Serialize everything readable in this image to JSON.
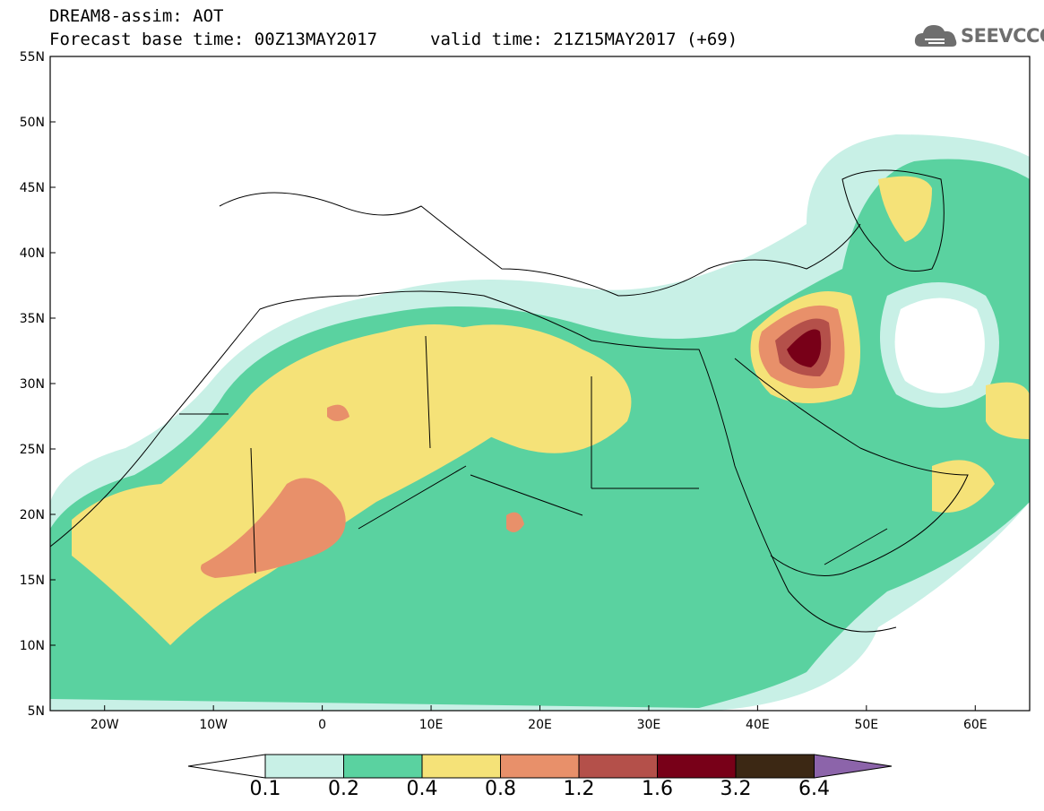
{
  "header": {
    "line1": "DREAM8-assim: AOT",
    "line2": "Forecast base time: 00Z13MAY2017",
    "line3": "valid time: 21Z15MAY2017 (+69)"
  },
  "logo": {
    "text": "SEEVCCC",
    "icon": "cloud-icon"
  },
  "map": {
    "lat_labels": [
      "55N",
      "50N",
      "45N",
      "40N",
      "35N",
      "30N",
      "25N",
      "20N",
      "15N",
      "10N",
      "5N"
    ],
    "lon_labels": [
      "20W",
      "10W",
      "0",
      "10E",
      "20E",
      "30E",
      "40E",
      "50E",
      "60E"
    ],
    "lon_range": [
      -25,
      65
    ],
    "lat_range": [
      5,
      55
    ]
  },
  "legend": {
    "colors": [
      "#c8f0e6",
      "#5ad2a0",
      "#f5e278",
      "#e8906a",
      "#b4504a",
      "#780018",
      "#3c2814",
      "#8c64aa"
    ],
    "labels": [
      "0.1",
      "0.2",
      "0.4",
      "0.8",
      "1.2",
      "1.6",
      "3.2",
      "6.4"
    ]
  }
}
